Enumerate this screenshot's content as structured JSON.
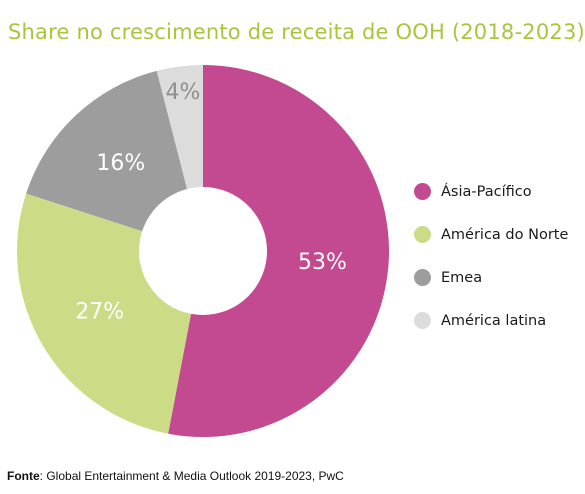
{
  "chart_data": {
    "type": "pie",
    "title": "Share no crescimento de receita de OOH (2018-2023)",
    "categories": [
      "Ásia-Pacífico",
      "América do Norte",
      "Emea",
      "América latina"
    ],
    "values": [
      53,
      27,
      16,
      4
    ],
    "value_labels": [
      "53%",
      "27%",
      "16%",
      "4%"
    ],
    "colors": [
      "#c34a91",
      "#ccdb86",
      "#9d9d9d",
      "#dcdcdc"
    ],
    "label_colors": [
      "#ffffff",
      "#ffffff",
      "#ffffff",
      "#8f8f8f"
    ],
    "legend_position": "right",
    "donut": true
  },
  "source": {
    "label": "Fonte",
    "text": ": Global Entertainment & Media Outlook 2019-2023, PwC"
  }
}
